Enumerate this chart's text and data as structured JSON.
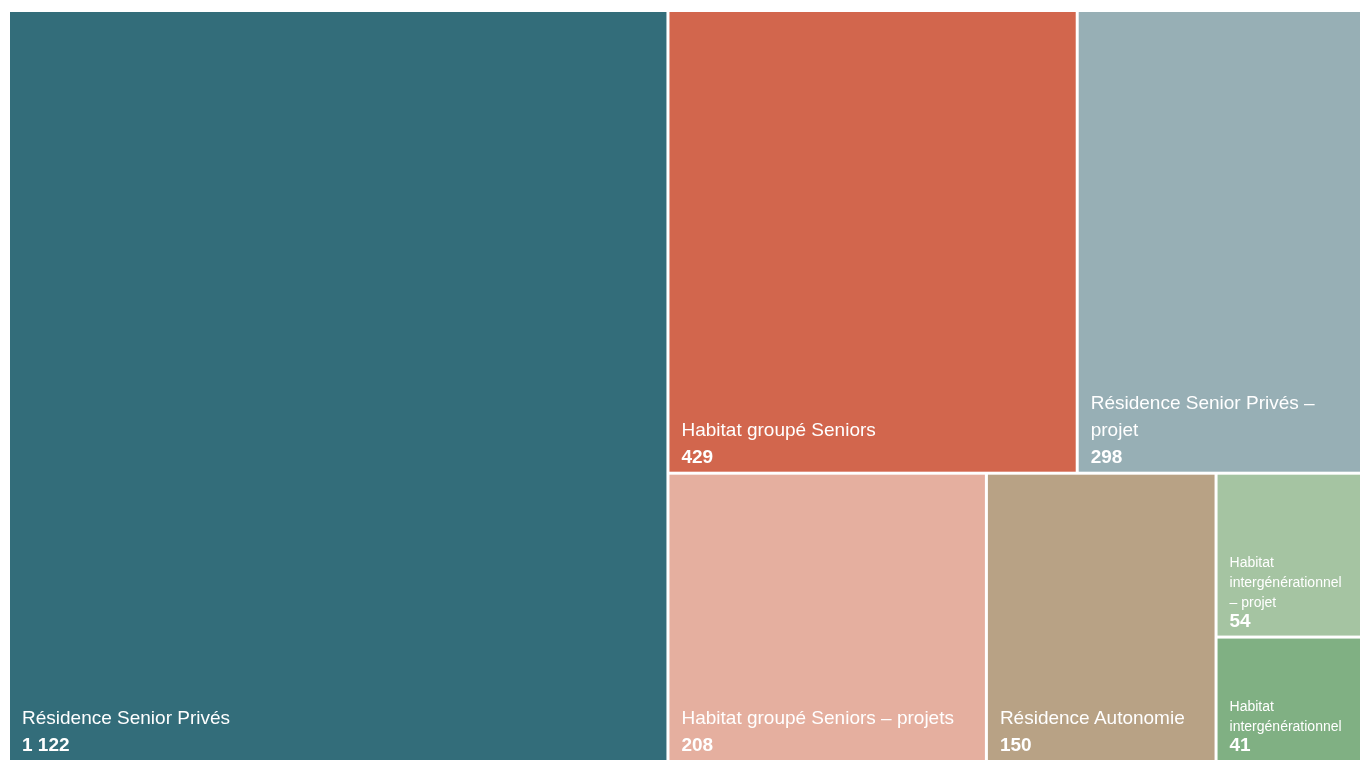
{
  "chart_data": {
    "type": "other",
    "categories": [
      "Résidence Senior Privés",
      "Habitat groupé Seniors",
      "Résidence Senior Privés – projet",
      "Habitat groupé Seniors – projets",
      "Résidence Autonomie",
      "Habitat intergénérationnel – projet",
      "Habitat intergénérationnel"
    ],
    "values": [
      1122,
      429,
      298,
      208,
      150,
      54,
      41
    ],
    "value_labels": [
      "1 122",
      "429",
      "298",
      "208",
      "150",
      "54",
      "41"
    ],
    "colors": [
      "#336d7a",
      "#d2664d",
      "#97afb5",
      "#e5af9f",
      "#b8a285",
      "#a5c4a2",
      "#80b083"
    ]
  }
}
